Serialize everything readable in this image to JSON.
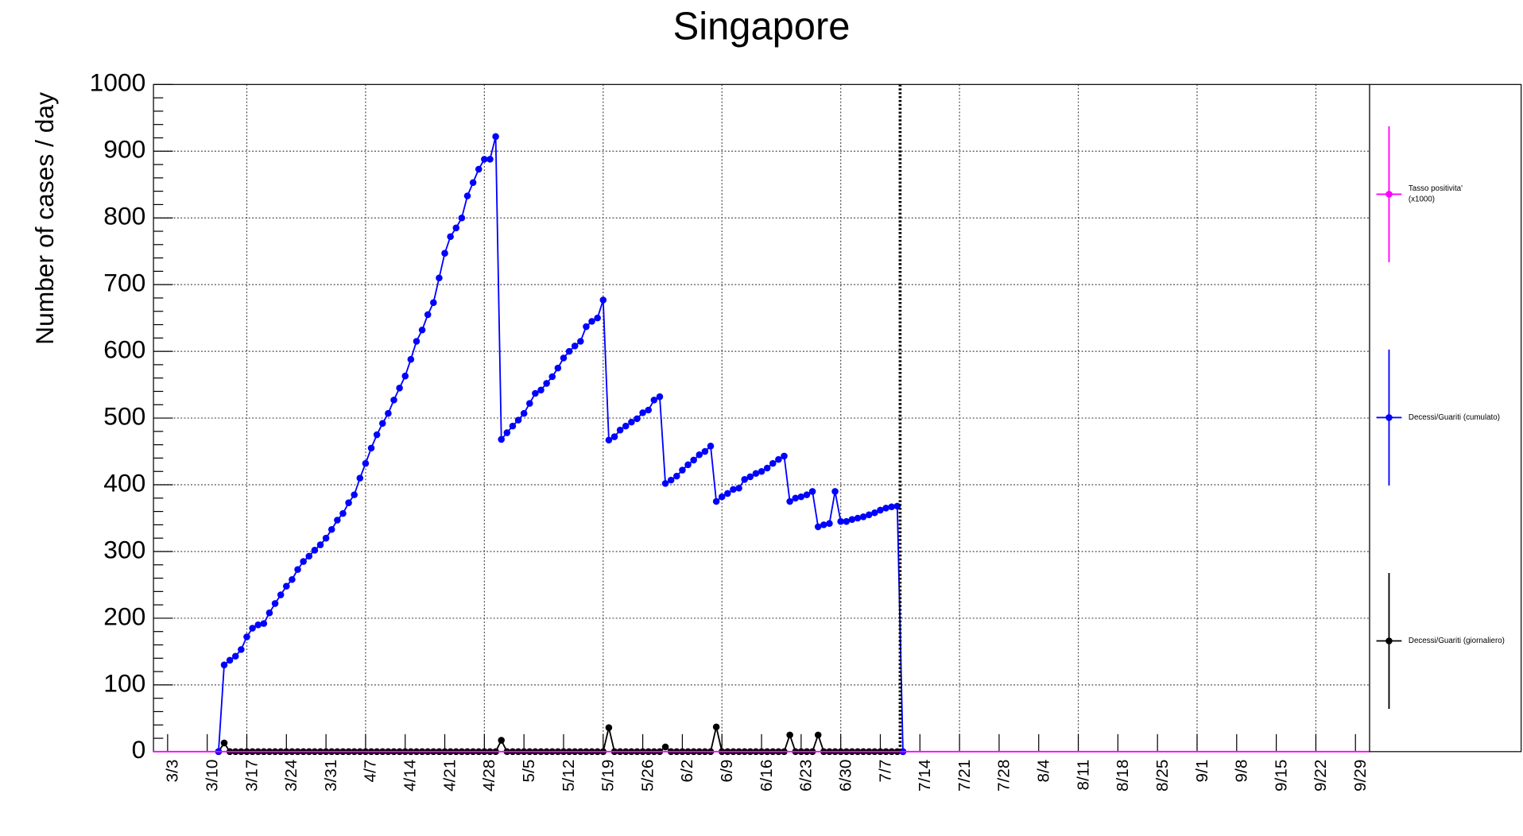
{
  "chart_data": {
    "type": "line",
    "title": "Singapore",
    "ylabel": "Number of cases / day",
    "x": [
      9,
      10,
      11,
      12,
      13,
      14,
      15,
      16,
      17,
      18,
      19,
      20,
      21,
      22,
      23,
      24,
      25,
      26,
      27,
      28,
      29,
      30,
      31,
      32,
      33,
      34,
      35,
      36,
      37,
      38,
      39,
      40,
      41,
      42,
      43,
      44,
      45,
      46,
      47,
      48,
      49,
      50,
      51,
      52,
      53,
      54,
      55,
      56,
      57,
      58,
      59,
      60,
      61,
      62,
      63,
      64,
      65,
      66,
      67,
      68,
      69,
      70,
      71,
      72,
      73,
      74,
      75,
      76,
      77,
      78,
      79,
      80,
      81,
      82,
      83,
      84,
      85,
      86,
      87,
      88,
      89,
      90,
      91,
      92,
      93,
      94,
      95,
      96,
      97,
      98,
      99,
      100,
      101,
      102,
      103,
      104,
      105,
      106,
      107,
      108,
      109,
      110,
      111,
      112,
      113,
      114,
      115,
      116,
      117,
      118,
      119,
      120,
      121,
      122,
      123,
      124,
      125,
      126,
      127,
      128,
      129,
      130
    ],
    "series": [
      {
        "name": "Tasso positivita' (x1000)",
        "color": "#ff00ff",
        "x": [
          -2.5,
          212.5
        ],
        "values": [
          0,
          0
        ]
      },
      {
        "name": "Decessi/Guariti (cumulato)",
        "color": "#0000ff",
        "values": [
          0,
          130,
          137,
          143,
          153,
          172,
          185,
          190,
          192,
          208,
          222,
          235,
          248,
          258,
          273,
          285,
          293,
          302,
          310,
          320,
          333,
          347,
          357,
          373,
          385,
          410,
          432,
          455,
          475,
          492,
          507,
          527,
          545,
          563,
          588,
          615,
          632,
          655,
          673,
          710,
          747,
          772,
          785,
          800,
          833,
          853,
          873,
          888,
          888,
          922,
          468,
          478,
          488,
          497,
          507,
          522,
          537,
          542,
          552,
          562,
          575,
          590,
          600,
          608,
          615,
          637,
          645,
          650,
          677,
          467,
          472,
          482,
          488,
          494,
          499,
          508,
          512,
          527,
          532,
          402,
          407,
          413,
          422,
          430,
          437,
          445,
          450,
          458,
          375,
          382,
          387,
          393,
          395,
          408,
          412,
          417,
          420,
          425,
          432,
          438,
          443,
          375,
          380,
          382,
          385,
          390,
          337,
          340,
          342,
          390,
          345,
          345,
          348,
          350,
          352,
          355,
          358,
          362,
          365,
          367,
          368,
          0
        ]
      },
      {
        "name": "Decessi/Guariti (giornaliero)",
        "color": "#000000",
        "values": [
          0,
          13,
          0,
          0,
          0,
          0,
          0,
          0,
          0,
          0,
          0,
          0,
          0,
          0,
          0,
          0,
          0,
          0,
          0,
          0,
          0,
          0,
          0,
          0,
          0,
          0,
          0,
          0,
          0,
          0,
          0,
          0,
          0,
          0,
          0,
          0,
          0,
          0,
          0,
          0,
          0,
          0,
          0,
          0,
          0,
          0,
          0,
          0,
          0,
          0,
          17,
          0,
          0,
          0,
          0,
          0,
          0,
          0,
          0,
          0,
          0,
          0,
          0,
          0,
          0,
          0,
          0,
          0,
          0,
          36,
          0,
          0,
          0,
          0,
          0,
          0,
          0,
          0,
          0,
          7,
          0,
          0,
          0,
          0,
          0,
          0,
          0,
          0,
          37,
          0,
          0,
          0,
          0,
          0,
          0,
          0,
          0,
          0,
          0,
          0,
          0,
          25,
          0,
          0,
          0,
          0,
          25,
          0,
          0,
          0,
          0,
          0,
          0,
          0,
          0,
          0,
          0,
          0,
          0,
          0,
          0,
          0
        ]
      }
    ],
    "xlim": [
      -2.5,
      212.5
    ],
    "xticks": [
      {
        "value": 0,
        "label": "3/3"
      },
      {
        "value": 7,
        "label": "3/10"
      },
      {
        "value": 14,
        "label": "3/17"
      },
      {
        "value": 21,
        "label": "3/24"
      },
      {
        "value": 28,
        "label": "3/31"
      },
      {
        "value": 35,
        "label": "4/7"
      },
      {
        "value": 42,
        "label": "4/14"
      },
      {
        "value": 49,
        "label": "4/21"
      },
      {
        "value": 56,
        "label": "4/28"
      },
      {
        "value": 63,
        "label": "5/5"
      },
      {
        "value": 70,
        "label": "5/12"
      },
      {
        "value": 77,
        "label": "5/19"
      },
      {
        "value": 84,
        "label": "5/26"
      },
      {
        "value": 91,
        "label": "6/2"
      },
      {
        "value": 98,
        "label": "6/9"
      },
      {
        "value": 105,
        "label": "6/16"
      },
      {
        "value": 112,
        "label": "6/23"
      },
      {
        "value": 119,
        "label": "6/30"
      },
      {
        "value": 126,
        "label": "7/7"
      },
      {
        "value": 133,
        "label": "7/14"
      },
      {
        "value": 140,
        "label": "7/21"
      },
      {
        "value": 147,
        "label": "7/28"
      },
      {
        "value": 154,
        "label": "8/4"
      },
      {
        "value": 161,
        "label": "8/11"
      },
      {
        "value": 168,
        "label": "8/18"
      },
      {
        "value": 175,
        "label": "8/25"
      },
      {
        "value": 182,
        "label": "9/1"
      },
      {
        "value": 189,
        "label": "9/8"
      },
      {
        "value": 196,
        "label": "9/15"
      },
      {
        "value": 203,
        "label": "9/22"
      },
      {
        "value": 210,
        "label": "9/29"
      }
    ],
    "ylim": [
      0,
      1000
    ],
    "yticks": [
      0,
      100,
      200,
      300,
      400,
      500,
      600,
      700,
      800,
      900,
      1000
    ],
    "grid": true,
    "vline": 129.5,
    "legend": "right"
  }
}
